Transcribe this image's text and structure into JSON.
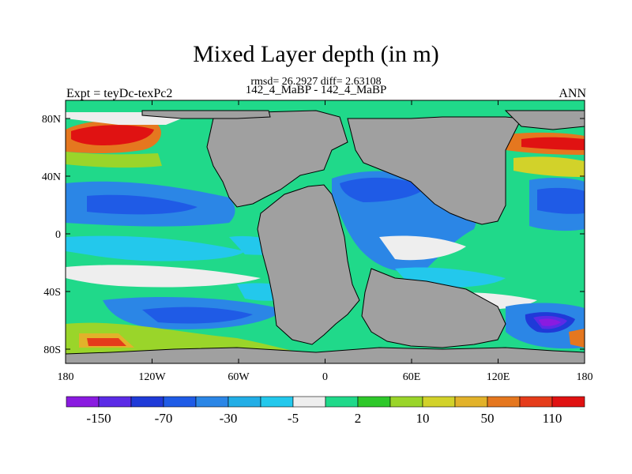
{
  "header": {
    "title": "Mixed Layer depth (in m)",
    "stats": "rmsd= 26.2927 diff= 2.63108",
    "subtitle": "142_4_MaBP - 142_4_MaBP",
    "expt": "Expt = teyDc-texPc2",
    "period": "ANN"
  },
  "map": {
    "lat_ticks": [
      {
        "label": "80N"
      },
      {
        "label": "40N"
      },
      {
        "label": "0"
      },
      {
        "label": "40S"
      },
      {
        "label": "80S"
      }
    ],
    "lon_ticks": [
      {
        "label": "180"
      },
      {
        "label": "120W"
      },
      {
        "label": "60W"
      },
      {
        "label": "0"
      },
      {
        "label": "60E"
      },
      {
        "label": "120E"
      },
      {
        "label": "180"
      }
    ],
    "land_color": "#a0a0a0"
  },
  "colorbar": {
    "colors": [
      "#8a1be0",
      "#5b2be6",
      "#1f3ad8",
      "#1f5be6",
      "#2b86e6",
      "#22aee6",
      "#23c8ec",
      "#eeeeee",
      "#20d98a",
      "#2ec82a",
      "#9ad52a",
      "#d2d22a",
      "#e2b22a",
      "#e5771f",
      "#e53c1b",
      "#e01212"
    ],
    "labels": [
      "-150",
      "-70",
      "-30",
      "-5",
      "2",
      "10",
      "50",
      "110"
    ]
  }
}
